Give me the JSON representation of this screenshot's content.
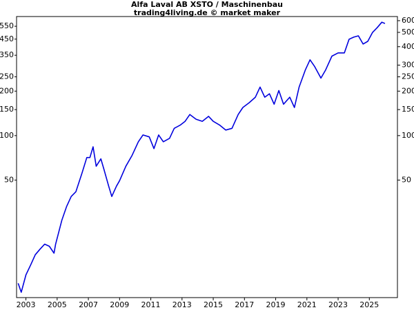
{
  "chart_data": {
    "type": "line",
    "title": "Alfa Laval AB XSTO / Maschinenbau",
    "subtitle": "trading4living.de © market maker",
    "log_scale": true,
    "color": "#0000dd",
    "xlim": [
      2002.4,
      2026.8
    ],
    "xticks": [
      2003,
      2005,
      2007,
      2009,
      2011,
      2013,
      2015,
      2017,
      2019,
      2021,
      2023,
      2025
    ],
    "ylim": [
      8,
      640
    ],
    "yticks": [
      50,
      100,
      150,
      200,
      250,
      350,
      450,
      550
    ],
    "y2lim": [
      8,
      640
    ],
    "y2ticks": [
      50,
      100,
      150,
      200,
      250,
      300,
      400,
      500,
      600
    ],
    "x": [
      2002.5,
      2002.7,
      2003.0,
      2003.3,
      2003.6,
      2003.9,
      2004.2,
      2004.5,
      2004.8,
      2004.9,
      2005.3,
      2005.6,
      2005.9,
      2006.2,
      2006.6,
      2006.9,
      2007.1,
      2007.3,
      2007.5,
      2007.8,
      2008.0,
      2008.3,
      2008.5,
      2008.8,
      2009.0,
      2009.4,
      2009.8,
      2010.2,
      2010.5,
      2010.9,
      2011.2,
      2011.5,
      2011.8,
      2012.2,
      2012.5,
      2012.9,
      2013.2,
      2013.5,
      2013.9,
      2014.3,
      2014.7,
      2015.0,
      2015.4,
      2015.8,
      2016.2,
      2016.6,
      2016.9,
      2017.3,
      2017.7,
      2018.0,
      2018.3,
      2018.6,
      2018.9,
      2019.2,
      2019.5,
      2019.9,
      2020.2,
      2020.5,
      2020.9,
      2021.2,
      2021.5,
      2021.9,
      2022.2,
      2022.6,
      2023.0,
      2023.4,
      2023.7,
      2024.0,
      2024.3,
      2024.6,
      2024.9,
      2025.2,
      2025.5,
      2025.8,
      2026.0
    ],
    "values": [
      10,
      8.7,
      11.4,
      13.3,
      15.6,
      17,
      18.4,
      17.8,
      16,
      18.4,
      26.7,
      33,
      38.7,
      41.7,
      56,
      71,
      71,
      84,
      62,
      69.6,
      59,
      45.5,
      38.7,
      45.5,
      49.5,
      62,
      73.4,
      90.8,
      101,
      98,
      81.7,
      101,
      90.8,
      95.8,
      112,
      118,
      125,
      139,
      129,
      125,
      135,
      125,
      118,
      109,
      112,
      139,
      155,
      167,
      182,
      213,
      182,
      192,
      163,
      202,
      163,
      182,
      155,
      213,
      278,
      326,
      293,
      245,
      278,
      345,
      363,
      363,
      449,
      464,
      474,
      417,
      435,
      499,
      538,
      586,
      574
    ]
  }
}
